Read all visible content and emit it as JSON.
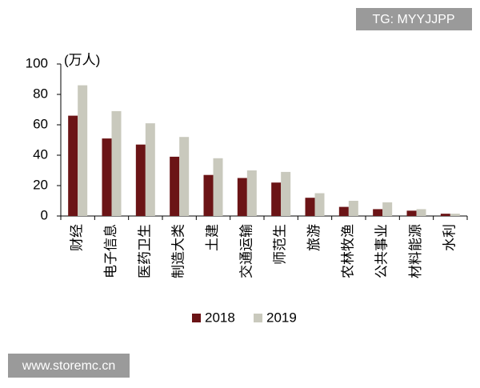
{
  "chart_data": {
    "type": "bar",
    "y_label": "(万人)",
    "categories": [
      "财经",
      "电子信息",
      "医药卫生",
      "制造大类",
      "土建",
      "交通运输",
      "师范生",
      "旅游",
      "农林牧渔",
      "公共事业",
      "材料能源",
      "水利"
    ],
    "series": [
      {
        "name": "2018",
        "color": "#6b1416",
        "values": [
          66,
          51,
          47,
          39,
          27,
          25,
          22,
          12,
          6,
          4.5,
          3.5,
          1.5
        ]
      },
      {
        "name": "2019",
        "color": "#c9c9bd",
        "values": [
          86,
          69,
          61,
          52,
          38,
          30,
          29,
          15,
          10,
          9,
          4.5,
          1.5
        ]
      }
    ],
    "ylim": [
      0,
      100
    ],
    "yticks": [
      0,
      20,
      40,
      60,
      80,
      100
    ],
    "legend": "bottom"
  },
  "watermarks": [
    "TG: MYYJJPP",
    "www.storemc.cn"
  ]
}
